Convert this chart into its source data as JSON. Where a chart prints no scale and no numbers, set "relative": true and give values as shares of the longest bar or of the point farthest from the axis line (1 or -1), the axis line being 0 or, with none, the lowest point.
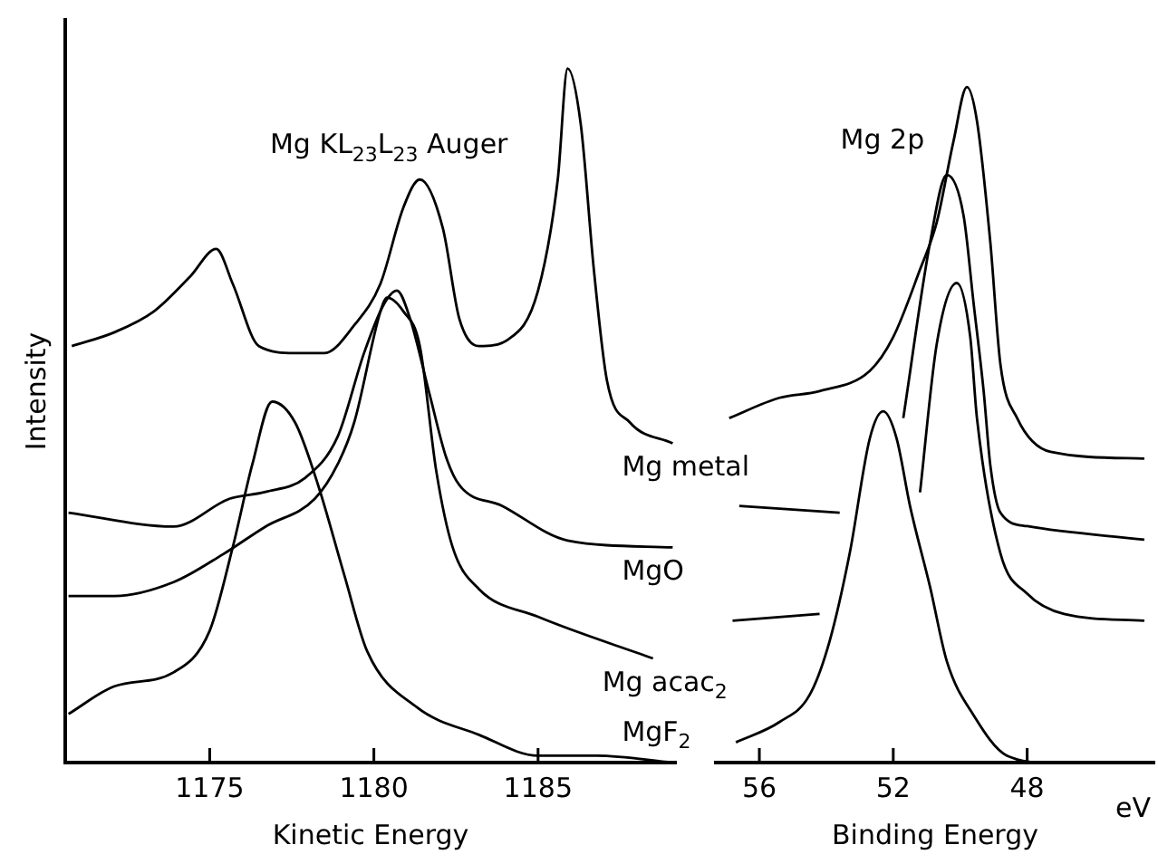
{
  "chart_data": [
    {
      "type": "line",
      "title": "Mg KL$_{23}$L$_{23}$ Auger",
      "xlabel": "Kinetic Energy",
      "ylabel": "Intensity",
      "relative": true,
      "xlim": [
        1170.6,
        1189.2
      ],
      "xticks": [
        1175,
        1180,
        1185
      ],
      "tick_labels": "x",
      "series": [
        {
          "name": "Mg metal",
          "color": "#000000",
          "x": [
            1170.8,
            1172.1,
            1173.3,
            1174.4,
            1175.2,
            1175.7,
            1176.5,
            1177.6,
            1178.5,
            1179.4,
            1180.2,
            1180.9,
            1181.4,
            1182.1,
            1182.6,
            1183.2,
            1184.1,
            1185.0,
            1185.6,
            1185.9,
            1186.3,
            1186.7,
            1187.1,
            1187.8,
            1189.1
          ],
          "values": [
            0.6,
            0.62,
            0.65,
            0.7,
            0.74,
            0.69,
            0.6,
            0.59,
            0.59,
            0.63,
            0.69,
            0.8,
            0.84,
            0.77,
            0.64,
            0.6,
            0.61,
            0.68,
            0.84,
            1.0,
            0.92,
            0.71,
            0.55,
            0.49,
            0.46
          ]
        },
        {
          "name": "MgO",
          "color": "#000000",
          "x": [
            1170.7,
            1173.9,
            1175.6,
            1176.7,
            1177.9,
            1178.9,
            1179.7,
            1180.3,
            1180.7,
            1181.1,
            1181.7,
            1182.2,
            1182.6,
            1183.9,
            1185.9,
            1189.1
          ],
          "values": [
            0.36,
            0.34,
            0.38,
            0.39,
            0.41,
            0.47,
            0.59,
            0.66,
            0.68,
            0.64,
            0.53,
            0.44,
            0.4,
            0.37,
            0.32,
            0.31
          ]
        },
        {
          "name": "Mg acac$_{2}$",
          "color": "#000000",
          "x": [
            1170.7,
            1172.1,
            1173.9,
            1175.4,
            1176.7,
            1178.2,
            1178.9,
            1179.4,
            1180.2,
            1180.4,
            1180.9,
            1181.4,
            1181.9,
            1182.4,
            1183.2,
            1185.0,
            1188.5
          ],
          "values": [
            0.24,
            0.24,
            0.26,
            0.3,
            0.34,
            0.38,
            0.43,
            0.49,
            0.65,
            0.67,
            0.65,
            0.6,
            0.42,
            0.31,
            0.25,
            0.21,
            0.15
          ]
        },
        {
          "name": "MgF$_{2}$",
          "color": "#000000",
          "x": [
            1170.7,
            1172.1,
            1173.9,
            1175.0,
            1175.7,
            1176.3,
            1176.9,
            1177.6,
            1178.3,
            1179.1,
            1179.8,
            1181.3,
            1183.2,
            1185.0,
            1186.8,
            1189.1
          ],
          "values": [
            0.07,
            0.11,
            0.13,
            0.19,
            0.31,
            0.43,
            0.52,
            0.49,
            0.4,
            0.27,
            0.16,
            0.08,
            0.04,
            0.01,
            0.01,
            0.0
          ]
        }
      ]
    },
    {
      "type": "line",
      "title": "Mg 2p",
      "xlabel": "Binding Energy",
      "relative": true,
      "xlim": [
        57.3,
        44.2
      ],
      "xticks": [
        56,
        52,
        48
      ],
      "tick_labels": "x",
      "annotations": [
        "eV"
      ],
      "series": [
        {
          "color": "#000000",
          "x": [
            56.9,
            55.4,
            54.2,
            52.7,
            52.0,
            51.2,
            50.7,
            50.2,
            49.8,
            49.5,
            49.1,
            48.8,
            48.3,
            47.3,
            44.5
          ],
          "values": [
            0.51,
            0.54,
            0.55,
            0.58,
            0.63,
            0.73,
            0.8,
            0.92,
            1.0,
            0.95,
            0.77,
            0.59,
            0.51,
            0.46,
            0.45
          ]
        },
        {
          "color": "#000000",
          "x": [
            56.6,
            53.6,
            52.7,
            51.7,
            50.9,
            50.4,
            49.9,
            49.6,
            49.3,
            49.1,
            48.8,
            48.0,
            44.5
          ],
          "values": [
            0.38,
            0.37,
            null,
            0.51,
            0.77,
            0.87,
            0.81,
            0.68,
            0.55,
            0.44,
            0.37,
            0.35,
            0.33
          ]
        },
        {
          "color": "#000000",
          "x": [
            56.8,
            54.2,
            53.0,
            51.2,
            50.7,
            50.1,
            49.7,
            49.5,
            48.8,
            48.0,
            46.9,
            44.5
          ],
          "values": [
            0.21,
            0.22,
            null,
            0.4,
            0.62,
            0.71,
            0.63,
            0.51,
            0.31,
            0.25,
            0.22,
            0.21
          ]
        },
        {
          "color": "#000000",
          "x": [
            56.7,
            55.4,
            54.5,
            53.9,
            53.3,
            52.7,
            52.3,
            51.9,
            51.5,
            50.9,
            50.4,
            49.6,
            48.6,
            47.3,
            44.5
          ],
          "values": [
            0.03,
            0.06,
            0.1,
            0.18,
            0.31,
            0.48,
            0.52,
            0.48,
            0.38,
            0.26,
            0.15,
            0.07,
            0.01,
            0.0,
            0.0
          ]
        }
      ]
    }
  ]
}
